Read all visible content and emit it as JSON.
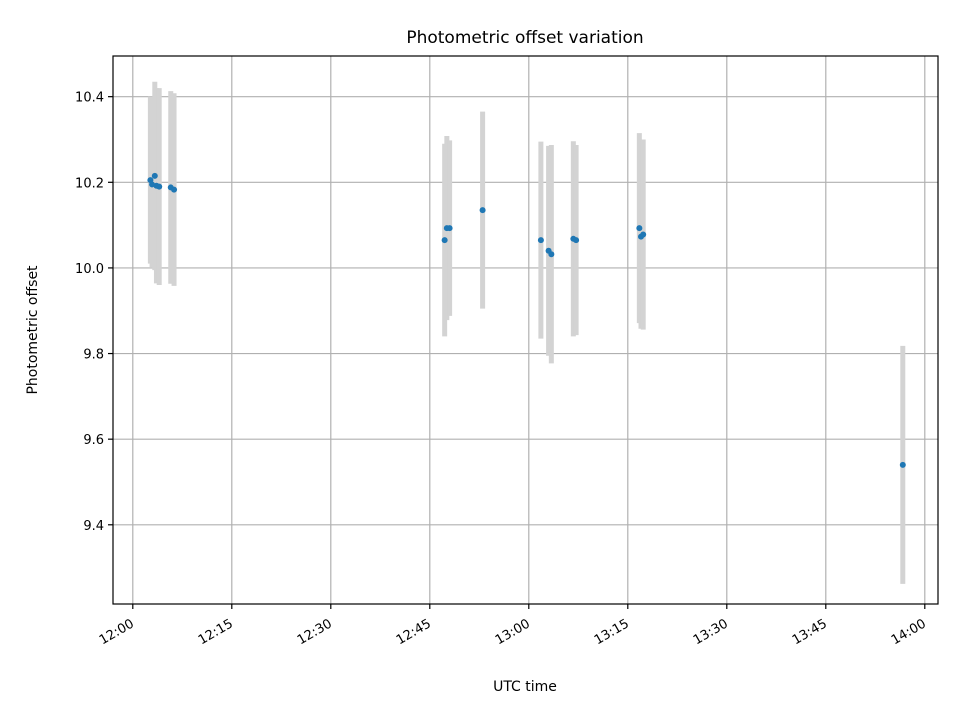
{
  "chart_data": {
    "type": "scatter",
    "title": "Photometric offset variation",
    "xlabel": "UTC time",
    "ylabel": "Photometric offset",
    "x_ticks": [
      "12:00",
      "12:15",
      "12:30",
      "12:45",
      "13:00",
      "13:15",
      "13:30",
      "13:45",
      "14:00"
    ],
    "y_ticks": [
      "9.4",
      "9.6",
      "9.8",
      "10.0",
      "10.2",
      "10.4"
    ],
    "xlim": [
      "11:57",
      "14:02"
    ],
    "ylim": [
      9.215,
      10.495
    ],
    "grid": true,
    "colors": {
      "point": "#1f77b4",
      "errorbar": "#d3d3d3",
      "grid": "#b0b0b0"
    },
    "series": [
      {
        "points": [
          {
            "x": "12:02:40",
            "y": 10.205,
            "err": 0.195
          },
          {
            "x": "12:02:55",
            "y": 10.195,
            "err": 0.195
          },
          {
            "x": "12:03:20",
            "y": 10.215,
            "err": 0.22
          },
          {
            "x": "12:03:35",
            "y": 10.192,
            "err": 0.228
          },
          {
            "x": "12:04:00",
            "y": 10.19,
            "err": 0.23
          },
          {
            "x": "12:05:45",
            "y": 10.188,
            "err": 0.225
          },
          {
            "x": "12:06:15",
            "y": 10.183,
            "err": 0.225
          },
          {
            "x": "12:47:15",
            "y": 10.065,
            "err": 0.225
          },
          {
            "x": "12:47:35",
            "y": 10.093,
            "err": 0.215
          },
          {
            "x": "12:48:00",
            "y": 10.093,
            "err": 0.205
          },
          {
            "x": "12:53:00",
            "y": 10.135,
            "err": 0.23
          },
          {
            "x": "13:01:50",
            "y": 10.065,
            "err": 0.23
          },
          {
            "x": "13:03:00",
            "y": 10.04,
            "err": 0.245
          },
          {
            "x": "13:03:25",
            "y": 10.032,
            "err": 0.255
          },
          {
            "x": "13:06:45",
            "y": 10.068,
            "err": 0.228
          },
          {
            "x": "13:07:10",
            "y": 10.065,
            "err": 0.222
          },
          {
            "x": "13:16:45",
            "y": 10.093,
            "err": 0.222
          },
          {
            "x": "13:17:00",
            "y": 10.073,
            "err": 0.215
          },
          {
            "x": "13:17:20",
            "y": 10.078,
            "err": 0.222
          },
          {
            "x": "13:56:40",
            "y": 9.54,
            "err": 0.278
          }
        ]
      }
    ]
  }
}
